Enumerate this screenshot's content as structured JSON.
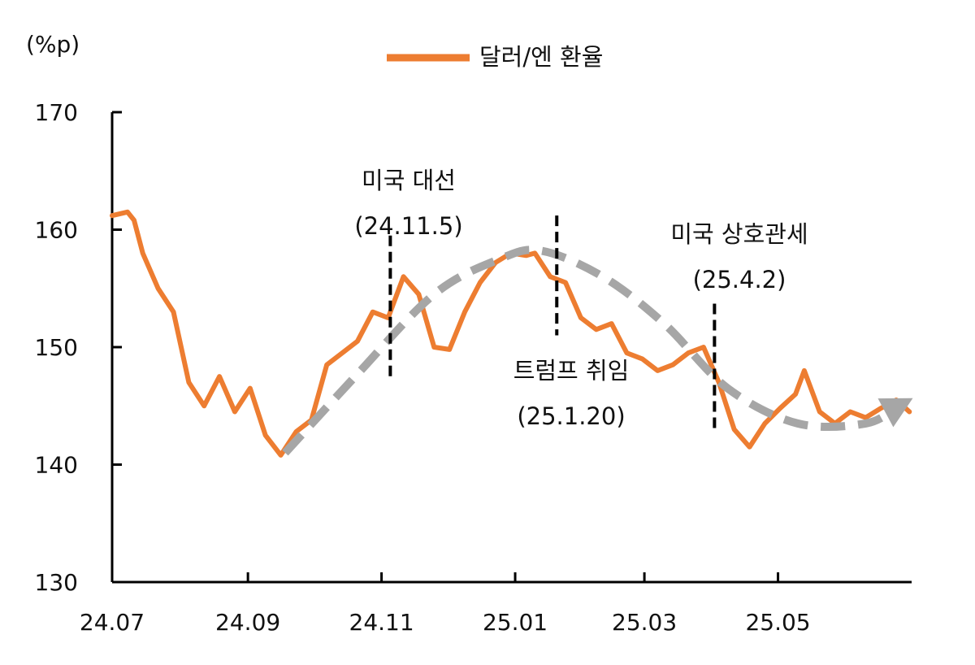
{
  "chart_data": {
    "type": "line",
    "title": "",
    "xlabel": "",
    "ylabel": "(%p)",
    "ylim": [
      130,
      170
    ],
    "yticks": [
      130,
      140,
      150,
      160,
      170
    ],
    "xticks": [
      "24.07",
      "24.09",
      "24.11",
      "25.01",
      "25.03",
      "25.05"
    ],
    "grid": false,
    "legend": {
      "position": "top",
      "entries": [
        "달러/엔 환율"
      ]
    },
    "colors": {
      "series": "#ED7D31",
      "trend": "#A6A6A6",
      "axis": "#000000"
    },
    "series": [
      {
        "name": "달러/엔 환율",
        "x": [
          "24.07.01",
          "24.07.08",
          "24.07.11",
          "24.07.15",
          "24.07.22",
          "24.07.29",
          "24.08.05",
          "24.08.12",
          "24.08.19",
          "24.08.26",
          "24.09.02",
          "24.09.09",
          "24.09.16",
          "24.09.23",
          "24.09.30",
          "24.10.07",
          "24.10.14",
          "24.10.21",
          "24.10.28",
          "24.11.04",
          "24.11.11",
          "24.11.18",
          "24.11.25",
          "24.12.02",
          "24.12.09",
          "24.12.16",
          "24.12.23",
          "24.12.30",
          "25.01.06",
          "25.01.10",
          "25.01.17",
          "25.01.24",
          "25.01.31",
          "25.02.07",
          "25.02.14",
          "25.02.21",
          "25.02.28",
          "25.03.07",
          "25.03.14",
          "25.03.21",
          "25.03.28",
          "25.04.04",
          "25.04.11",
          "25.04.18",
          "25.04.25",
          "25.05.02",
          "25.05.09",
          "25.05.13",
          "25.05.20",
          "25.05.27",
          "25.06.03",
          "25.06.10",
          "25.06.17",
          "25.06.24",
          "25.06.30"
        ],
        "values": [
          161.2,
          161.5,
          160.8,
          158.0,
          155.0,
          153.0,
          147.0,
          145.0,
          147.5,
          144.5,
          146.5,
          142.5,
          140.8,
          142.8,
          143.8,
          148.5,
          149.5,
          150.5,
          153.0,
          152.5,
          156.0,
          154.5,
          150.0,
          149.8,
          153.0,
          155.5,
          157.2,
          158.0,
          157.8,
          158.0,
          156.0,
          155.5,
          152.5,
          151.5,
          152.0,
          149.5,
          149.0,
          148.0,
          148.5,
          149.5,
          150.0,
          147.0,
          143.0,
          141.5,
          143.5,
          144.8,
          146.0,
          148.0,
          144.5,
          143.5,
          144.5,
          144.0,
          144.8,
          145.5,
          144.5
        ]
      }
    ],
    "trend": {
      "style": "dashed-arrow",
      "x": [
        "24.09.18",
        "24.10.20",
        "24.11.25",
        "24.12.25",
        "25.01.13",
        "25.02.10",
        "25.03.10",
        "25.04.08",
        "25.05.10",
        "25.06.10",
        "25.06.25"
      ],
      "values": [
        141.0,
        147.5,
        154.5,
        157.5,
        158.2,
        156.0,
        152.0,
        146.5,
        143.5,
        143.5,
        145.0
      ]
    },
    "annotations": [
      {
        "label": "미국 대선",
        "date_label": "(24.11.5)",
        "x": "24.11.05",
        "line_from": 147.3,
        "line_to": 159.5
      },
      {
        "label": "트럼프 취임",
        "date_label": "(25.1.20)",
        "x": "25.01.20",
        "line_from": 151.0,
        "line_to": 161.2
      },
      {
        "label": "미국 상호관세",
        "date_label": "(25.4.2)",
        "x": "25.04.02",
        "line_from": 142.8,
        "line_to": 153.7
      }
    ]
  }
}
